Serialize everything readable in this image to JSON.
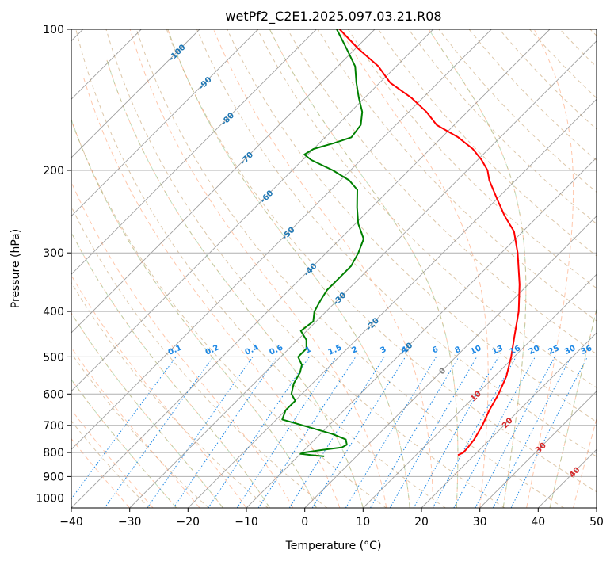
{
  "chart_data": {
    "type": "line",
    "title": "wetPf2_C2E1.2025.097.03.21.R08",
    "xlabel": "Temperature (°C)",
    "ylabel": "Pressure (hPa)",
    "xlim": [
      -40,
      50
    ],
    "ylim": [
      1050,
      100
    ],
    "y_scale": "log",
    "grid": true,
    "x_ticks": [
      -40,
      -30,
      -20,
      -10,
      0,
      10,
      20,
      30,
      40,
      50
    ],
    "x_tick_labels": [
      "−40",
      "−30",
      "−20",
      "−10",
      "0",
      "10",
      "20",
      "30",
      "40",
      "50"
    ],
    "y_ticks": [
      100,
      200,
      300,
      400,
      500,
      600,
      700,
      800,
      900,
      1000
    ],
    "y_tick_labels": [
      "100",
      "200",
      "300",
      "400",
      "500",
      "600",
      "700",
      "800",
      "900",
      "1000"
    ],
    "skew_slope": 1.0,
    "colors": {
      "temperature": "#ff0000",
      "dewpoint": "#008000",
      "isotherm": "#808080",
      "dry_adiabat": "#d2b48c",
      "moist_adiabat": "#ff9966",
      "mixing_ratio": "#1e88e5",
      "wet_bulb": "#90c890",
      "isotherm_label_blue": "#1f77b4",
      "isotherm_label_red": "#d62728"
    },
    "series": [
      {
        "key": "temperature",
        "pressure": [
          810,
          800,
          780,
          750,
          700,
          650,
          600,
          550,
          500,
          450,
          400,
          350,
          300,
          270,
          250,
          230,
          210,
          200,
          190,
          180,
          170,
          160,
          150,
          140,
          130,
          120,
          110,
          100
        ],
        "values": [
          17.2,
          17.7,
          17.6,
          17.3,
          16.3,
          14.9,
          13.7,
          12.0,
          9.5,
          6.4,
          3.0,
          -1.5,
          -7.2,
          -11.5,
          -15.8,
          -20.0,
          -24.5,
          -26.5,
          -29.3,
          -32.7,
          -37.2,
          -43.0,
          -47.0,
          -52.0,
          -58.2,
          -63.0,
          -69.5,
          -76.0
        ]
      },
      {
        "key": "dewpoint",
        "pressure": [
          815,
          810,
          805,
          800,
          790,
          780,
          770,
          750,
          730,
          700,
          680,
          650,
          620,
          600,
          570,
          540,
          520,
          500,
          480,
          460,
          440,
          420,
          400,
          380,
          360,
          340,
          320,
          300,
          280,
          260,
          240,
          220,
          210,
          200,
          190,
          185,
          180,
          175,
          170,
          160,
          150,
          140,
          130,
          120,
          110,
          100
        ],
        "values": [
          -5.5,
          -8.0,
          -10.0,
          -9.6,
          -7.0,
          -4.0,
          -3.6,
          -4.7,
          -8.0,
          -14.5,
          -19.0,
          -20.0,
          -20.0,
          -21.8,
          -23.2,
          -24.0,
          -25.0,
          -27.0,
          -27.0,
          -28.5,
          -31.0,
          -30.5,
          -32.0,
          -32.8,
          -33.5,
          -33.5,
          -33.5,
          -34.5,
          -36.0,
          -39.5,
          -42.5,
          -45.5,
          -48.5,
          -53.0,
          -58.5,
          -60.6,
          -60.0,
          -57.5,
          -55.5,
          -56.0,
          -58.0,
          -61.0,
          -64.0,
          -67.0,
          -71.5,
          -76.5
        ]
      }
    ],
    "isotherm_labels": [
      {
        "text": "-100",
        "value": -100,
        "pressure": 112
      },
      {
        "text": "-90",
        "value": -90,
        "pressure": 130
      },
      {
        "text": "-80",
        "value": -80,
        "pressure": 155
      },
      {
        "text": "-70",
        "value": -70,
        "pressure": 188
      },
      {
        "text": "-60",
        "value": -60,
        "pressure": 227
      },
      {
        "text": "-50",
        "value": -50,
        "pressure": 272
      },
      {
        "text": "-40",
        "value": -40,
        "pressure": 325
      },
      {
        "text": "-30",
        "value": -30,
        "pressure": 375
      },
      {
        "text": "-20",
        "value": -20,
        "pressure": 425
      },
      {
        "text": "-10",
        "value": -10,
        "pressure": 480
      },
      {
        "text": "0",
        "value": 0,
        "pressure": 535
      },
      {
        "text": "10",
        "value": 10,
        "pressure": 605
      },
      {
        "text": "20",
        "value": 20,
        "pressure": 690
      },
      {
        "text": "30",
        "value": 30,
        "pressure": 780
      },
      {
        "text": "40",
        "value": 40,
        "pressure": 880
      }
    ],
    "mixing_ratio_labels": [
      "0.1",
      "0.2",
      "0.4",
      "0.6",
      "1",
      "1.5",
      "2",
      "3",
      "4",
      "6",
      "8",
      "10",
      "13",
      "16",
      "20",
      "25",
      "30",
      "36"
    ],
    "mixing_ratio_values": [
      0.1,
      0.2,
      0.4,
      0.6,
      1,
      1.5,
      2,
      3,
      4,
      6,
      8,
      10,
      13,
      16,
      20,
      25,
      30,
      36
    ],
    "mixing_ratio_label_pressure": 500
  }
}
